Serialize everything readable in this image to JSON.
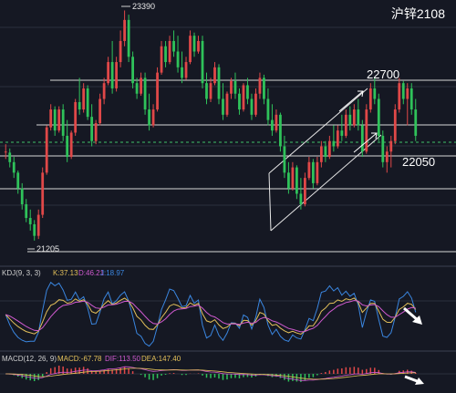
{
  "title": "沪锌2108",
  "colors": {
    "background": "#151823",
    "up": "#e04848",
    "down": "#2fc25a",
    "grid": "#2a2f3d",
    "line": "#d7d7d7",
    "k": "#e3c05a",
    "d": "#d05ad0",
    "j": "#3a86e0",
    "macd_up": "#e04848",
    "macd_down": "#2fc25a"
  },
  "annotations": {
    "high_price": "23390",
    "low_price": "21205",
    "resistance": "22700",
    "support": "22050"
  },
  "kdj": {
    "label": "KDJ(9, 3, 3)",
    "k": "K:37.13",
    "d": "D:46.21",
    "j": "J:18.97"
  },
  "macd": {
    "label": "MACD(12, 26, 9)",
    "macd": "MACD:-67.78",
    "dif": "DIF:113.50",
    "dea": "DEA:147.40"
  },
  "chart_data": {
    "type": "candlestick",
    "title": "沪锌2108",
    "ylim": [
      21100,
      23420
    ],
    "levels": [
      22700,
      22050
    ],
    "high": 23390,
    "low": 21205,
    "candles": [
      [
        22050,
        22120,
        21980,
        22050
      ],
      [
        22040,
        22080,
        21900,
        21950
      ],
      [
        21950,
        22000,
        21800,
        21850
      ],
      [
        21850,
        21870,
        21650,
        21700
      ],
      [
        21700,
        21750,
        21500,
        21550
      ],
      [
        21550,
        21600,
        21380,
        21420
      ],
      [
        21420,
        21500,
        21300,
        21360
      ],
      [
        21360,
        21400,
        21205,
        21250
      ],
      [
        21250,
        21500,
        21220,
        21450
      ],
      [
        21450,
        21900,
        21420,
        21850
      ],
      [
        21850,
        22300,
        21830,
        22280
      ],
      [
        22280,
        22500,
        22250,
        22450
      ],
      [
        22450,
        22480,
        22200,
        22250
      ],
      [
        22250,
        22480,
        22230,
        22450
      ],
      [
        22450,
        22500,
        22150,
        22200
      ],
      [
        22200,
        22350,
        21950,
        22000
      ],
      [
        22000,
        22250,
        21980,
        22230
      ],
      [
        22230,
        22550,
        22200,
        22520
      ],
      [
        22520,
        22750,
        22400,
        22450
      ],
      [
        22450,
        22700,
        22420,
        22650
      ],
      [
        22650,
        22680,
        22350,
        22380
      ],
      [
        22380,
        22500,
        22100,
        22150
      ],
      [
        22150,
        22350,
        22120,
        22320
      ],
      [
        22320,
        22600,
        22300,
        22550
      ],
      [
        22550,
        22750,
        22500,
        22700
      ],
      [
        22700,
        22950,
        22680,
        22900
      ],
      [
        22900,
        23100,
        22600,
        22650
      ],
      [
        22650,
        22950,
        22620,
        22900
      ],
      [
        22900,
        23200,
        22850,
        23100
      ],
      [
        23100,
        23390,
        23050,
        23300
      ],
      [
        23300,
        23350,
        22900,
        22950
      ],
      [
        22950,
        23000,
        22650,
        22700
      ],
      [
        22700,
        22750,
        22550,
        22600
      ],
      [
        22600,
        22800,
        22580,
        22750
      ],
      [
        22750,
        22800,
        22400,
        22450
      ],
      [
        22450,
        22600,
        22250,
        22300
      ],
      [
        22300,
        22500,
        22280,
        22450
      ],
      [
        22450,
        22850,
        22430,
        22800
      ],
      [
        22800,
        23100,
        22780,
        23050
      ],
      [
        23050,
        23100,
        22850,
        22900
      ],
      [
        22900,
        23150,
        22880,
        23100
      ],
      [
        23100,
        23200,
        22950,
        23000
      ],
      [
        23000,
        23150,
        22800,
        22850
      ],
      [
        22850,
        23000,
        22700,
        22750
      ],
      [
        22750,
        22950,
        22730,
        22900
      ],
      [
        22900,
        23200,
        22880,
        23150
      ],
      [
        23150,
        23180,
        22950,
        23000
      ],
      [
        23000,
        23150,
        22980,
        23100
      ],
      [
        23100,
        23150,
        22650,
        22700
      ],
      [
        22700,
        22800,
        22500,
        22550
      ],
      [
        22550,
        22750,
        22520,
        22700
      ],
      [
        22700,
        22900,
        22680,
        22850
      ],
      [
        22850,
        22880,
        22500,
        22550
      ],
      [
        22550,
        22700,
        22350,
        22400
      ],
      [
        22400,
        22620,
        22380,
        22600
      ],
      [
        22600,
        22750,
        22550,
        22720
      ],
      [
        22720,
        22800,
        22550,
        22600
      ],
      [
        22600,
        22650,
        22400,
        22450
      ],
      [
        22450,
        22700,
        22430,
        22680
      ],
      [
        22680,
        22750,
        22500,
        22550
      ],
      [
        22550,
        22600,
        22350,
        22400
      ],
      [
        22400,
        22650,
        22380,
        22600
      ],
      [
        22600,
        22800,
        22550,
        22750
      ],
      [
        22750,
        22780,
        22500,
        22550
      ],
      [
        22550,
        22650,
        22300,
        22350
      ],
      [
        22350,
        22500,
        22200,
        22250
      ],
      [
        22250,
        22450,
        22230,
        22400
      ],
      [
        22400,
        22420,
        22050,
        22100
      ],
      [
        22100,
        22200,
        21800,
        21850
      ],
      [
        21850,
        21950,
        21650,
        21700
      ],
      [
        21700,
        21950,
        21680,
        21900
      ],
      [
        21900,
        21920,
        21600,
        21650
      ],
      [
        21650,
        21800,
        21500,
        21550
      ],
      [
        21550,
        21850,
        21530,
        21800
      ],
      [
        21800,
        22000,
        21780,
        21950
      ],
      [
        21950,
        21980,
        21700,
        21750
      ],
      [
        21750,
        22000,
        21730,
        21950
      ],
      [
        21950,
        22150,
        21900,
        22100
      ],
      [
        22100,
        22150,
        21950,
        22000
      ],
      [
        22000,
        22200,
        21980,
        22150
      ],
      [
        22150,
        22300,
        22050,
        22100
      ],
      [
        22100,
        22300,
        22080,
        22250
      ],
      [
        22250,
        22400,
        22150,
        22200
      ],
      [
        22200,
        22450,
        22180,
        22400
      ],
      [
        22400,
        22480,
        22250,
        22300
      ],
      [
        22300,
        22500,
        22280,
        22450
      ],
      [
        22450,
        22550,
        22250,
        22300
      ],
      [
        22300,
        22350,
        22000,
        22050
      ],
      [
        22050,
        22500,
        22030,
        22450
      ],
      [
        22450,
        22700,
        22420,
        22650
      ],
      [
        22650,
        22760,
        22500,
        22550
      ],
      [
        22550,
        22600,
        22150,
        22200
      ],
      [
        22200,
        22250,
        21900,
        21950
      ],
      [
        21950,
        22100,
        21850,
        22050
      ],
      [
        22050,
        22200,
        21900,
        22150
      ],
      [
        22150,
        22500,
        22120,
        22450
      ],
      [
        22450,
        22750,
        22420,
        22700
      ],
      [
        22700,
        22720,
        22500,
        22550
      ],
      [
        22550,
        22700,
        22300,
        22650
      ],
      [
        22650,
        22700,
        22400,
        22450
      ],
      [
        22450,
        22550,
        22150,
        22200
      ]
    ]
  }
}
